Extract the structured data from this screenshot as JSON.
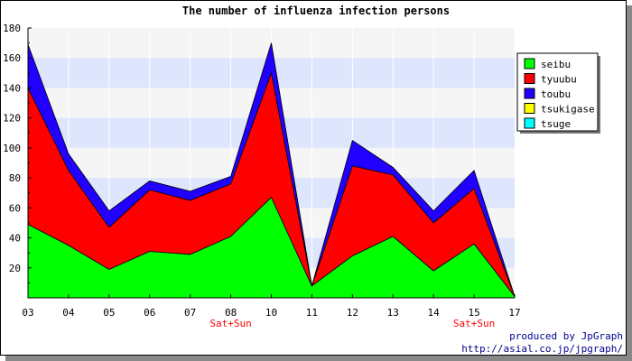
{
  "chart_data": {
    "type": "area",
    "stacked": true,
    "title": "The number of influenza infection persons",
    "categories": [
      "03",
      "04",
      "05",
      "06",
      "07",
      "08",
      "10",
      "11",
      "12",
      "13",
      "14",
      "15",
      "17"
    ],
    "category_notes": [
      {
        "category": "08",
        "text": "Sat+Sun"
      },
      {
        "category": "15",
        "text": "Sat+Sun"
      }
    ],
    "ylim": [
      0,
      180
    ],
    "yticks": [
      20,
      40,
      60,
      80,
      100,
      120,
      140,
      160,
      180
    ],
    "grid": true,
    "legend_position": "right",
    "series": [
      {
        "name": "seibu",
        "color": "#00ff00",
        "values": [
          49,
          35,
          19,
          31,
          29,
          41,
          67,
          8,
          28,
          41,
          18,
          36,
          1
        ]
      },
      {
        "name": "tyuubu",
        "color": "#ff0000",
        "values": [
          91,
          50,
          28,
          41,
          36,
          35,
          83,
          0,
          60,
          41,
          32,
          37,
          0
        ]
      },
      {
        "name": "toubu",
        "color": "#2200ff",
        "values": [
          29,
          11,
          11,
          6,
          6,
          5,
          20,
          0,
          17,
          5,
          8,
          12,
          0
        ]
      },
      {
        "name": "tsukigase",
        "color": "#ffff00",
        "values": [
          0,
          0,
          0,
          0,
          0,
          0,
          0,
          0,
          0,
          0,
          0,
          0,
          0
        ]
      },
      {
        "name": "tsuge",
        "color": "#00ffff",
        "values": [
          0,
          0,
          0,
          0,
          0,
          0,
          0,
          0,
          0,
          0,
          0,
          0,
          0
        ]
      }
    ]
  },
  "credit": {
    "line1": "produced by JpGraph",
    "line2": "http://asial.co.jp/jpgraph/"
  }
}
